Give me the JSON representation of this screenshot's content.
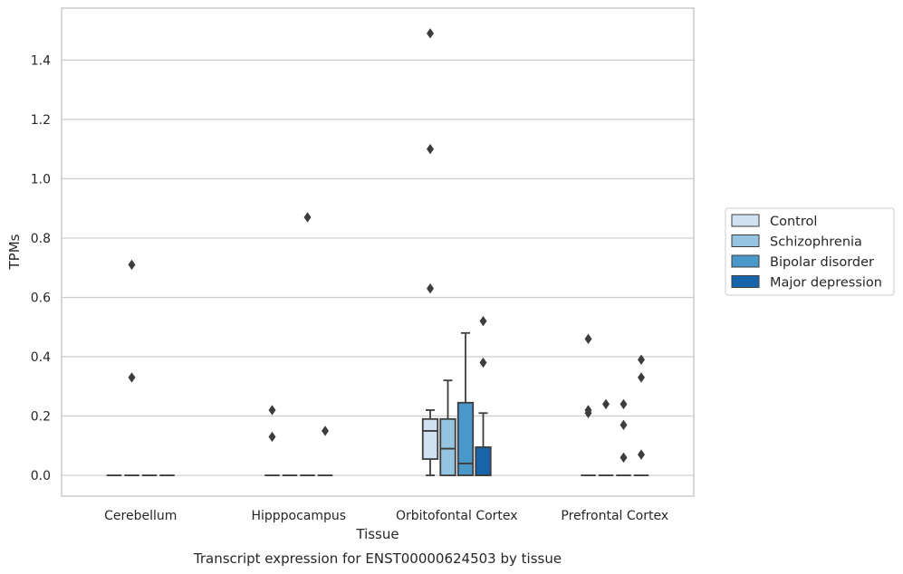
{
  "chart_data": {
    "type": "box",
    "caption": "Transcript expression for ENST00000624503 by tissue",
    "xlabel": "Tissue",
    "ylabel": "TPMs",
    "ylim": [
      -0.07,
      1.575
    ],
    "yticks": [
      0.0,
      0.2,
      0.4,
      0.6,
      0.8,
      1.0,
      1.2,
      1.4
    ],
    "ytick_labels": [
      "0.0",
      "0.2",
      "0.4",
      "0.6",
      "0.8",
      "1.0",
      "1.2",
      "1.4"
    ],
    "grid": "horizontal",
    "legend_position": "right",
    "categories": [
      "Cerebellum",
      "Hipppocampus",
      "Orbitofontal Cortex",
      "Prefrontal Cortex"
    ],
    "series": [
      {
        "name": "Control",
        "color": "#d0e1f2",
        "boxes": [
          {
            "category": "Cerebellum",
            "q1": 0,
            "median": 0,
            "q3": 0,
            "whisker_low": 0,
            "whisker_high": 0,
            "outliers": []
          },
          {
            "category": "Hipppocampus",
            "q1": 0,
            "median": 0,
            "q3": 0,
            "whisker_low": 0,
            "whisker_high": 0,
            "outliers": [
              0.22,
              0.13
            ]
          },
          {
            "category": "Orbitofontal Cortex",
            "q1": 0.055,
            "median": 0.15,
            "q3": 0.19,
            "whisker_low": 0,
            "whisker_high": 0.22,
            "outliers": [
              1.49,
              1.1,
              0.63
            ]
          },
          {
            "category": "Prefrontal Cortex",
            "q1": 0,
            "median": 0,
            "q3": 0,
            "whisker_low": 0,
            "whisker_high": 0,
            "outliers": [
              0.46,
              0.22,
              0.21
            ]
          }
        ]
      },
      {
        "name": "Schizophrenia",
        "color": "#94c4df",
        "boxes": [
          {
            "category": "Cerebellum",
            "q1": 0,
            "median": 0,
            "q3": 0,
            "whisker_low": 0,
            "whisker_high": 0,
            "outliers": [
              0.71,
              0.33
            ]
          },
          {
            "category": "Hipppocampus",
            "q1": 0,
            "median": 0,
            "q3": 0,
            "whisker_low": 0,
            "whisker_high": 0,
            "outliers": []
          },
          {
            "category": "Orbitofontal Cortex",
            "q1": 0,
            "median": 0.09,
            "q3": 0.19,
            "whisker_low": 0,
            "whisker_high": 0.32,
            "outliers": []
          },
          {
            "category": "Prefrontal Cortex",
            "q1": 0,
            "median": 0,
            "q3": 0,
            "whisker_low": 0,
            "whisker_high": 0,
            "outliers": [
              0.24
            ]
          }
        ]
      },
      {
        "name": "Bipolar disorder",
        "color": "#4a98c9",
        "boxes": [
          {
            "category": "Cerebellum",
            "q1": 0,
            "median": 0,
            "q3": 0,
            "whisker_low": 0,
            "whisker_high": 0,
            "outliers": []
          },
          {
            "category": "Hipppocampus",
            "q1": 0,
            "median": 0,
            "q3": 0,
            "whisker_low": 0,
            "whisker_high": 0,
            "outliers": [
              0.87
            ]
          },
          {
            "category": "Orbitofontal Cortex",
            "q1": 0,
            "median": 0.04,
            "q3": 0.245,
            "whisker_low": 0,
            "whisker_high": 0.48,
            "outliers": []
          },
          {
            "category": "Prefrontal Cortex",
            "q1": 0,
            "median": 0,
            "q3": 0,
            "whisker_low": 0,
            "whisker_high": 0,
            "outliers": [
              0.24,
              0.17,
              0.06
            ]
          }
        ]
      },
      {
        "name": "Major depression",
        "color": "#1764ab",
        "boxes": [
          {
            "category": "Cerebellum",
            "q1": 0,
            "median": 0,
            "q3": 0,
            "whisker_low": 0,
            "whisker_high": 0,
            "outliers": []
          },
          {
            "category": "Hipppocampus",
            "q1": 0,
            "median": 0,
            "q3": 0,
            "whisker_low": 0,
            "whisker_high": 0,
            "outliers": [
              0.15
            ]
          },
          {
            "category": "Orbitofontal Cortex",
            "q1": 0,
            "median": 0,
            "q3": 0.095,
            "whisker_low": 0,
            "whisker_high": 0.21,
            "outliers": [
              0.52,
              0.38
            ]
          },
          {
            "category": "Prefrontal Cortex",
            "q1": 0,
            "median": 0,
            "q3": 0,
            "whisker_low": 0,
            "whisker_high": 0,
            "outliers": [
              0.39,
              0.33,
              0.07
            ]
          }
        ]
      }
    ]
  }
}
